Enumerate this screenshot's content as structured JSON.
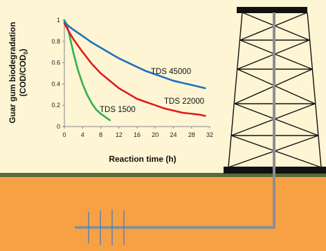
{
  "colors": {
    "background": "#fdf5d4",
    "ground": "#f7a145",
    "grass": "#5a6b3a",
    "pipe": "#8e8e8e",
    "rig": "#111111"
  },
  "scene": {
    "illustration": [
      "drilling-rig",
      "ground-layer",
      "wellbore-pipe",
      "horizontal-well-with-fractures"
    ]
  },
  "chart_data": {
    "type": "line",
    "xlabel": "Reaction time (h)",
    "ylabel": "Guar gum biodegradation",
    "ylabel_line2": "(COD/COD",
    "ylabel_subscript": "0",
    "ylabel_close": ")",
    "xlim": [
      0,
      32
    ],
    "ylim": [
      0,
      1
    ],
    "xticks": [
      0,
      4,
      8,
      12,
      16,
      20,
      24,
      28,
      32
    ],
    "yticks": [
      0,
      0.2,
      0.4,
      0.6,
      0.8,
      1
    ],
    "ytick_labels": [
      "0",
      "0.2",
      "0.4",
      "0.6",
      "0.8",
      "1"
    ],
    "grid": false,
    "series": [
      {
        "name": "TDS 1500",
        "color": "#2db34a",
        "x": [
          0,
          0.5,
          1,
          2,
          3,
          4,
          5,
          6,
          7,
          8,
          9,
          10
        ],
        "y": [
          1.0,
          0.96,
          0.88,
          0.69,
          0.53,
          0.4,
          0.3,
          0.22,
          0.16,
          0.12,
          0.09,
          0.06
        ]
      },
      {
        "name": "TDS 22000",
        "color": "#e3191b",
        "x": [
          0,
          1,
          2,
          4,
          6,
          8,
          10,
          12,
          14,
          16,
          18,
          20,
          22,
          24,
          26,
          28,
          30,
          31
        ],
        "y": [
          0.97,
          0.89,
          0.82,
          0.7,
          0.59,
          0.5,
          0.43,
          0.36,
          0.31,
          0.26,
          0.23,
          0.2,
          0.17,
          0.15,
          0.13,
          0.12,
          0.11,
          0.1
        ]
      },
      {
        "name": "TDS 45000",
        "color": "#1f6fbd",
        "x": [
          0,
          1,
          2,
          4,
          6,
          8,
          10,
          12,
          14,
          16,
          18,
          20,
          22,
          24,
          26,
          28,
          30,
          31
        ],
        "y": [
          0.98,
          0.94,
          0.91,
          0.85,
          0.79,
          0.74,
          0.69,
          0.64,
          0.6,
          0.56,
          0.52,
          0.49,
          0.46,
          0.43,
          0.41,
          0.39,
          0.37,
          0.36
        ]
      }
    ]
  }
}
